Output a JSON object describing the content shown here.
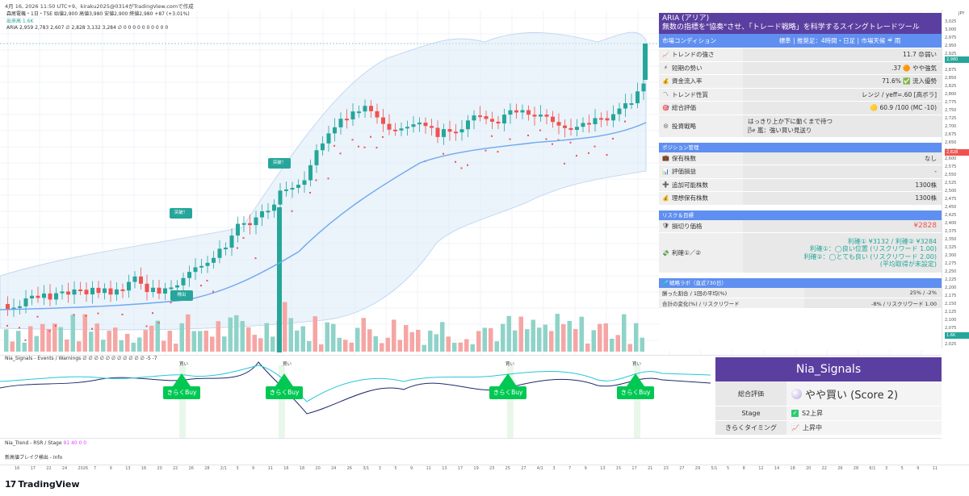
{
  "header": {
    "timestamp": "4月 16, 2026 11:50 UTC+9、kiraku2025@0314がTradingView.comで作成"
  },
  "legend": {
    "symbol": "森尾電機・1日・TSE 始値2,900 高値3,980 安値2,900 終値2,980 +87 (+3.01%)",
    "volume": "出来高 1.6K",
    "aria": "ARIA 2,959 2,783 2,607 ∅ 2,828 3,132 3,284 ∅ 0 0 0 0 0 0 0 0 0 0",
    "yaxis_unit": "JPY"
  },
  "yaxis_ticks": [
    "3,025",
    "3,000",
    "2,975",
    "2,950",
    "2,925",
    "2,900",
    "2,875",
    "2,850",
    "2,825",
    "2,800",
    "2,775",
    "2,750",
    "2,725",
    "2,700",
    "2,675",
    "2,650",
    "2,625",
    "2,600",
    "2,575",
    "2,550",
    "2,525",
    "2,500",
    "2,475",
    "2,450",
    "2,425",
    "2,400",
    "2,375",
    "2,350",
    "2,325",
    "2,300",
    "2,275",
    "2,250",
    "2,225",
    "2,200",
    "2,175",
    "2,150",
    "2,125",
    "2,100",
    "2,075",
    "2,050",
    "2,025"
  ],
  "yaxis_tags": [
    {
      "text": "2,980",
      "color": "#26a69a"
    },
    {
      "text": "2,828",
      "color": "#ef5350"
    },
    {
      "text": "1.6K",
      "color": "#26a69a"
    }
  ],
  "callouts": [
    {
      "text": "突破！"
    },
    {
      "text": "突破！"
    },
    {
      "text": "検出"
    }
  ],
  "aria_panel": {
    "title_line1": "ARIA (アリア)",
    "title_line2": "無数の指標を\"協奏\"させ、「トレード戦略」を科学するスイングトレードツール",
    "market_label": "市場コンディション",
    "market_value": "標準 | 推奨足：4時間・日足 | 市場天候 ☔ 雨",
    "rows1": [
      {
        "icon": "📈",
        "label": "トレンドの強さ",
        "value": "11.7 😟弱い"
      },
      {
        "icon": "⚡",
        "label": "短期の勢い",
        "value": ".37 🟠 やや強気"
      },
      {
        "icon": "💰",
        "label": "資金流入率",
        "value": "71.6% ✅ 流入優勢"
      },
      {
        "icon": "〽",
        "label": "トレンド性質",
        "value": "レンジ / yeff=.60 [高ボラ]"
      },
      {
        "icon": "🎯",
        "label": "総合評価",
        "value": "🟡 60.9 /100 (MC -10)"
      }
    ],
    "strategy_label": "投資戦略",
    "strategy_value_1": "はっきり上か下に動くまで待つ",
    "strategy_value_2": "🌬 嵐：強い買い見送り",
    "position_header": "ポジション管理",
    "rows2": [
      {
        "icon": "💼",
        "label": "保有株数",
        "value": "なし"
      },
      {
        "icon": "📊",
        "label": "評価損益",
        "value": "-"
      },
      {
        "icon": "➕",
        "label": "追加可能株数",
        "value": "1300株"
      },
      {
        "icon": "💰",
        "label": "理想保有株数",
        "value": "1300株"
      }
    ],
    "risk_header": "リスク＆目標",
    "stop_label": "損切り価格",
    "stop_value": "¥2828",
    "profit_label": "利確①／②",
    "profit_lines": [
      "利確① ¥3132 / 利確② ¥3284",
      "利確①：◯良い位置 (リスクリワード 1.00)",
      "利確②：◯とても良い (リスクリワード 2.00)",
      "(平均取得が未設定)"
    ],
    "lab_header": "戦略ラボ（直近730日）",
    "lab_rows": [
      {
        "label": "勝った割合 / 1回の平均(%)",
        "value": "25% / -2%"
      },
      {
        "label": "合計の変化(%) / リスクリワード",
        "value": "-8% / リスクリワード 1.00"
      }
    ]
  },
  "lower_pane": {
    "title": "Nia_Signals - Events / Warnings ∅ ∅ ∅ ∅ ∅ ∅ ∅ ∅ ∅ ∅ ∅ -5 -7",
    "buy_labels": [
      "きらくBuy",
      "きらくBuy",
      "きらくBuy",
      "きらくBuy"
    ],
    "kai_labels": [
      "買い",
      "買い",
      "買い",
      "買い"
    ]
  },
  "nia_panel": {
    "title": "Nia_Signals",
    "rating_label": "総合評価",
    "rating_value": "やや買い (Score 2)",
    "stage_label": "Stage",
    "stage_value": "S2上昇",
    "timing_label": "きらくタイミング",
    "timing_value": "上昇中"
  },
  "trend_pane": {
    "title": "Nia_Trend - RSR / Stage",
    "values": "91  40  0  0",
    "sub": "新高値ブレイク検出 - Info"
  },
  "xaxis_ticks": [
    "16",
    "17",
    "22",
    "24",
    "2026",
    "7",
    "9",
    "13",
    "16",
    "20",
    "22",
    "26",
    "28",
    "2/1",
    "3",
    "9",
    "11",
    "16",
    "18",
    "20",
    "24",
    "26",
    "3/1",
    "3",
    "5",
    "9",
    "11",
    "13",
    "17",
    "19",
    "23",
    "25",
    "27",
    "4/1",
    "3",
    "7",
    "9",
    "13",
    "15",
    "17",
    "21",
    "23",
    "27",
    "29",
    "5/1",
    "5",
    "8",
    "12",
    "14",
    "18",
    "20",
    "22",
    "26",
    "28",
    "6/1",
    "3",
    "5",
    "9",
    "11"
  ],
  "footer": {
    "brand": "TradingView"
  }
}
